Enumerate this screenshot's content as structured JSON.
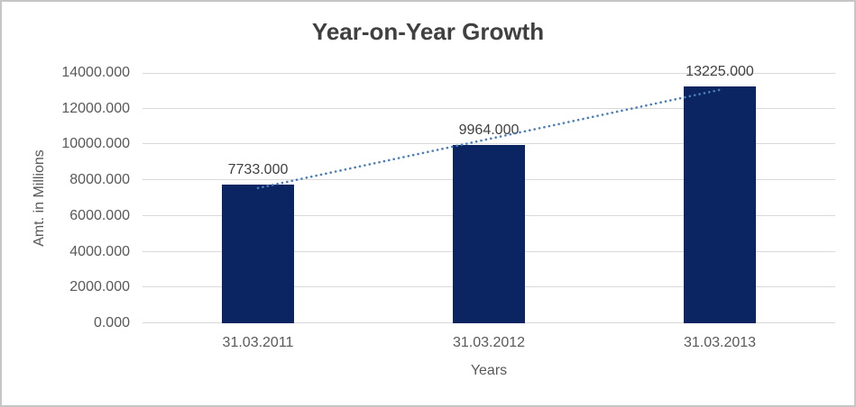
{
  "chart_data": {
    "type": "bar",
    "title": "Year-on-Year Growth",
    "xlabel": "Years",
    "ylabel": "Amt. in Millions",
    "categories": [
      "31.03.2011",
      "31.03.2012",
      "31.03.2013"
    ],
    "values": [
      7733,
      9964,
      13225
    ],
    "data_labels": [
      "7733.000",
      "9964.000",
      "13225.000"
    ],
    "ylim": [
      0,
      14000
    ],
    "ytick_step": 2000,
    "ytick_labels": [
      "0.000",
      "2000.000",
      "4000.000",
      "6000.000",
      "8000.000",
      "10000.000",
      "12000.000",
      "14000.000"
    ],
    "grid": true,
    "legend": "none",
    "trendline": {
      "type": "linear",
      "style": "dotted",
      "y_at_first": 7561,
      "y_at_last": 13053
    }
  },
  "colors": {
    "bar": "#0b2562",
    "trendline": "#4a7ebb",
    "title": "#404040",
    "axis_labels": "#595959",
    "data_labels": "#404040",
    "gridlines": "#d9d9d9",
    "frame_border": "#c6c6c6",
    "background": "#ffffff"
  }
}
